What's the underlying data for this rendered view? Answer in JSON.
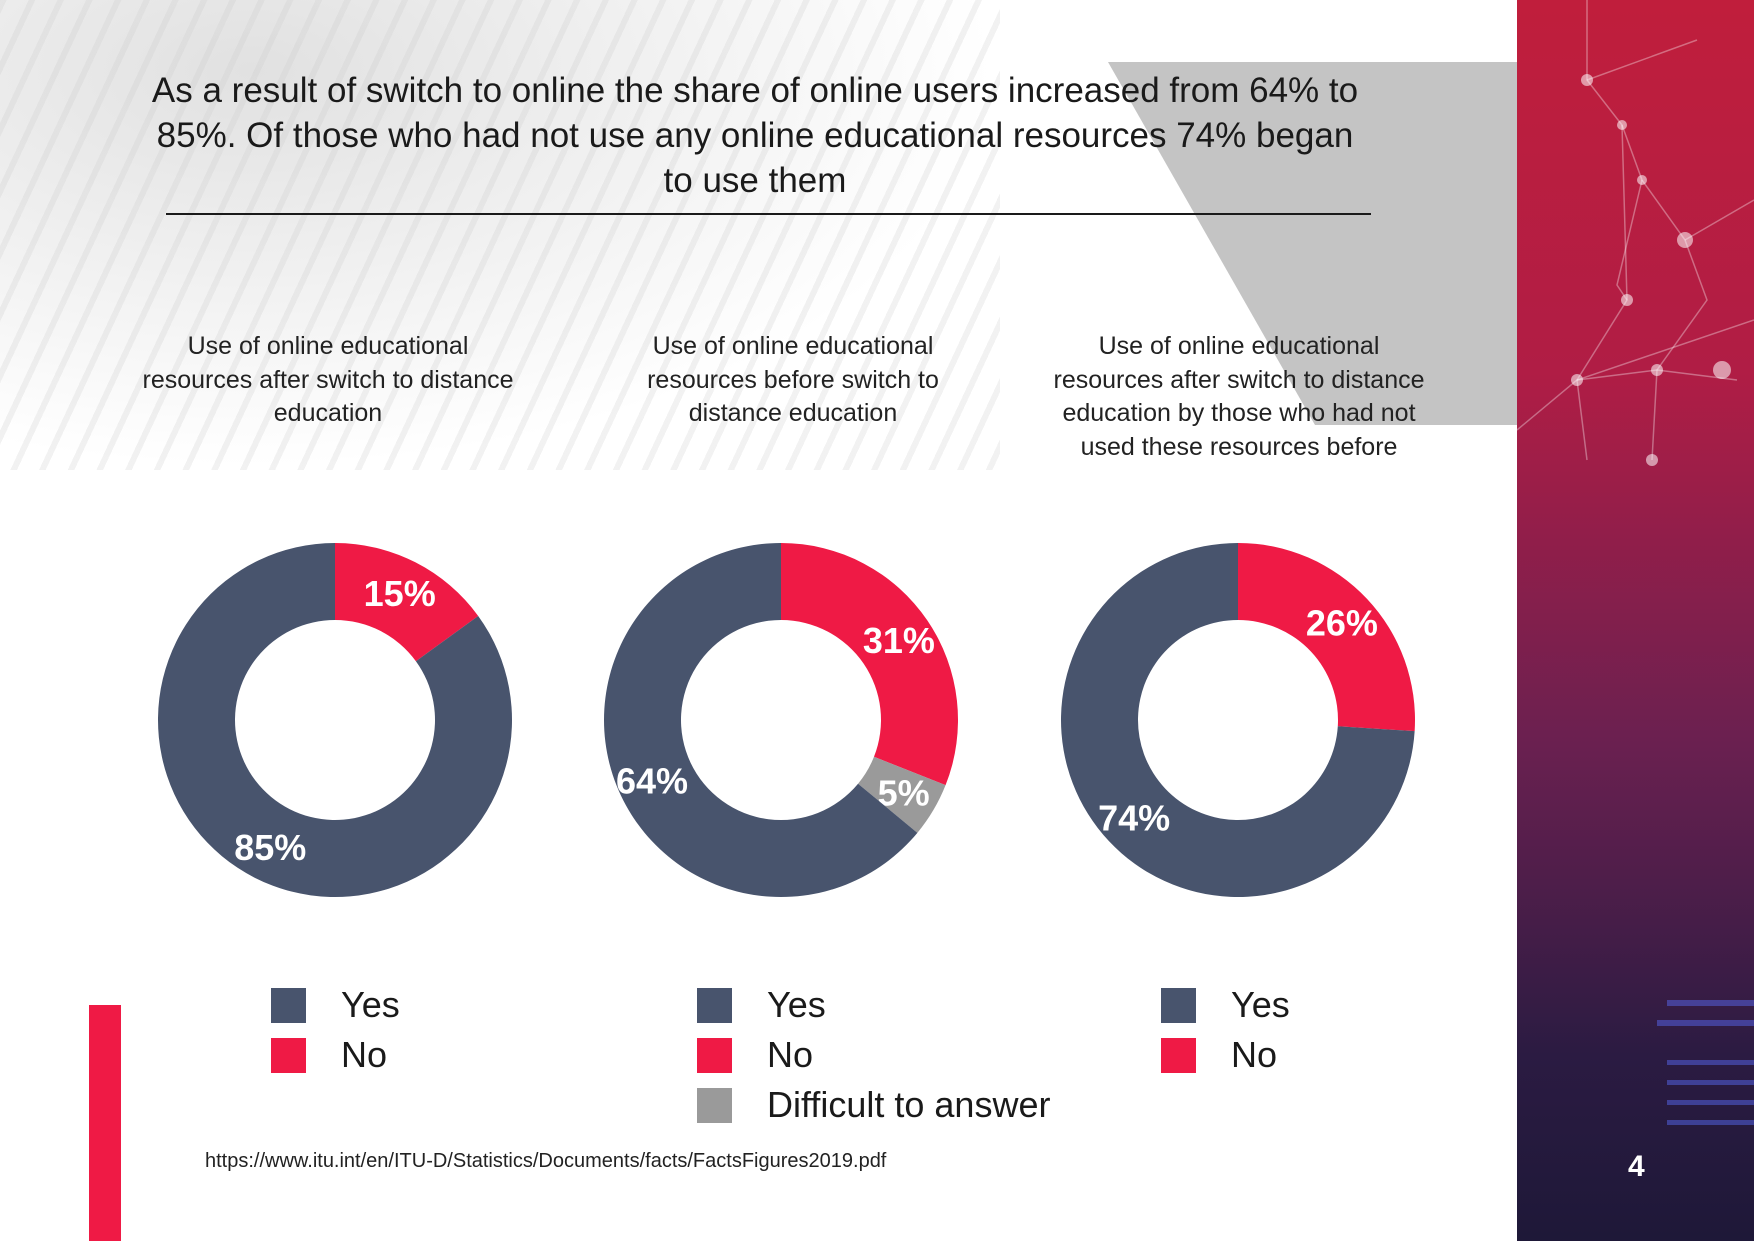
{
  "title": "As a result of switch to online the share of online users increased from 64% to 85%.  Of those who  had not use any online educational resources 74% began to use them",
  "page_number": "4",
  "source": "https://www.itu.int/en/ITU-D/Statistics/Documents/facts/FactsFigures2019.pdf",
  "colors": {
    "yes": "#48546d",
    "no": "#ef1a45",
    "difficult": "#9a9a9a",
    "accent": "#ef1a45"
  },
  "chart_data": [
    {
      "type": "pie",
      "title": "Use of online educational resources after switch to distance education",
      "categories": [
        "Yes",
        "No"
      ],
      "values": [
        85,
        15
      ],
      "labels": [
        "85%",
        "15%"
      ],
      "colors": [
        "#48546d",
        "#ef1a45"
      ],
      "legend": [
        "Yes",
        "No"
      ],
      "donut": true
    },
    {
      "type": "pie",
      "title": "Use of online educational resources before switch to distance education",
      "categories": [
        "Yes",
        "No",
        "Difficult to answer"
      ],
      "values": [
        64,
        31,
        5
      ],
      "labels": [
        "64%",
        "31%",
        "5%"
      ],
      "colors": [
        "#48546d",
        "#ef1a45",
        "#9a9a9a"
      ],
      "legend": [
        "Yes",
        "No",
        "Difficult to answer"
      ],
      "donut": true
    },
    {
      "type": "pie",
      "title": "Use of online educational resources after switch to distance education by those who had not used these resources before",
      "categories": [
        "Yes",
        "No"
      ],
      "values": [
        74,
        26
      ],
      "labels": [
        "74%",
        "26%"
      ],
      "colors": [
        "#48546d",
        "#ef1a45"
      ],
      "legend": [
        "Yes",
        "No"
      ],
      "donut": true
    }
  ]
}
